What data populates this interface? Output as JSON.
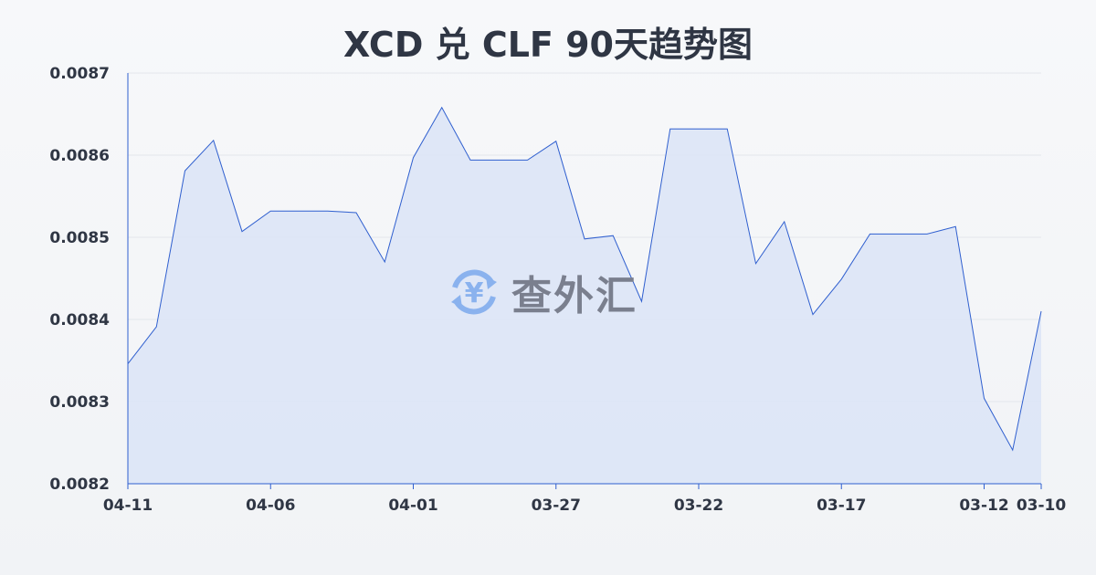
{
  "chart_data": {
    "type": "area",
    "title": "XCD 兑 CLF 90天趋势图",
    "xlabel": "",
    "ylabel": "",
    "x": [
      "04-11",
      "04-10",
      "04-09",
      "04-08",
      "04-07",
      "04-06",
      "04-05",
      "04-04",
      "04-03",
      "04-02",
      "04-01",
      "03-31",
      "03-30",
      "03-29",
      "03-28",
      "03-27",
      "03-26",
      "03-25",
      "03-24",
      "03-23",
      "03-22",
      "03-21",
      "03-20",
      "03-19",
      "03-18",
      "03-17",
      "03-16",
      "03-15",
      "03-14",
      "03-13",
      "03-12",
      "03-11",
      "03-10"
    ],
    "values": [
      0.008346,
      0.008391,
      0.008581,
      0.008618,
      0.008507,
      0.008532,
      0.008532,
      0.008532,
      0.00853,
      0.00847,
      0.008597,
      0.008658,
      0.008594,
      0.008594,
      0.008594,
      0.008617,
      0.008498,
      0.008502,
      0.008422,
      0.008632,
      0.008632,
      0.008632,
      0.008468,
      0.008519,
      0.008406,
      0.008449,
      0.008504,
      0.008504,
      0.008504,
      0.008513,
      0.008304,
      0.008241,
      0.00841
    ],
    "x_tick_labels": [
      "04-11",
      "04-06",
      "04-01",
      "03-27",
      "03-22",
      "03-17",
      "03-12",
      "03-10"
    ],
    "y_tick_labels": [
      "0.0082",
      "0.0083",
      "0.0084",
      "0.0085",
      "0.0086",
      "0.0087"
    ],
    "ylim": [
      0.0082,
      0.0087
    ],
    "grid": true,
    "line_color": "#2f5fcf",
    "fill_color": "#dbe4f7"
  },
  "watermark": {
    "text": "查外汇",
    "icon": "yen-exchange-icon"
  }
}
